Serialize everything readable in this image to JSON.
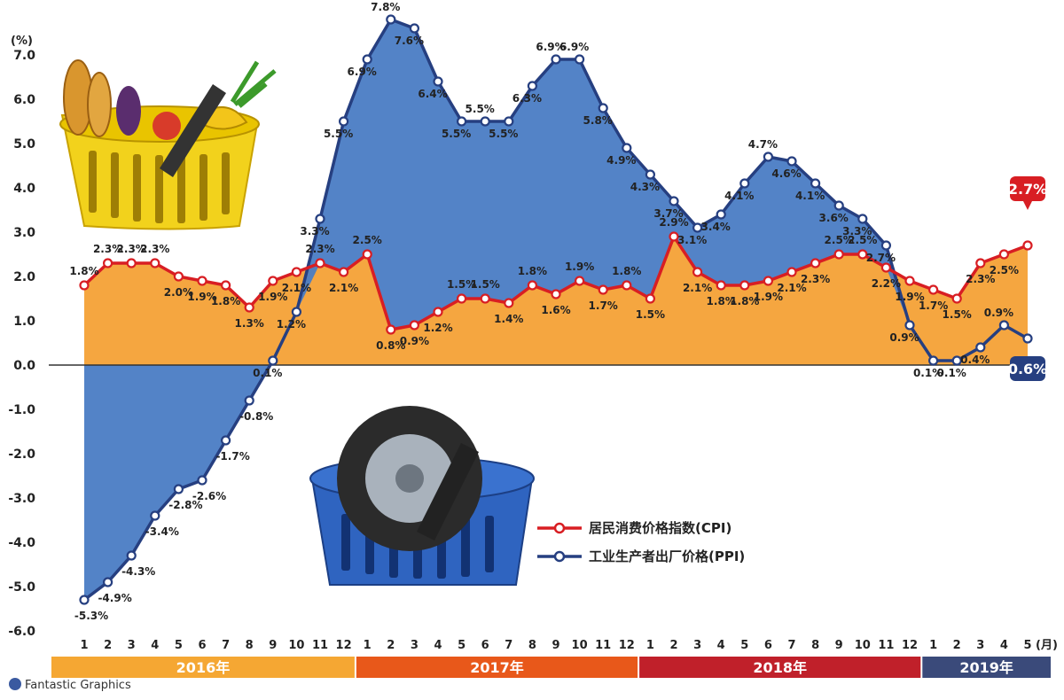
{
  "chart_data": {
    "type": "area",
    "ylabel": "(%)",
    "month_unit": "(月)",
    "ylim": [
      -6.0,
      7.0
    ],
    "yticks": [
      "7.0",
      "6.0",
      "5.0",
      "4.0",
      "3.0",
      "2.0",
      "1.0",
      "0.0",
      "-1.0",
      "-2.0",
      "-3.0",
      "-4.0",
      "-5.0",
      "-6.0"
    ],
    "months": [
      "1",
      "2",
      "3",
      "4",
      "5",
      "6",
      "7",
      "8",
      "9",
      "10",
      "11",
      "12",
      "1",
      "2",
      "3",
      "4",
      "5",
      "6",
      "7",
      "8",
      "9",
      "10",
      "11",
      "12",
      "1",
      "2",
      "3",
      "4",
      "5",
      "6",
      "7",
      "8",
      "9",
      "10",
      "11",
      "12",
      "1",
      "2",
      "3",
      "4",
      "5"
    ],
    "years": [
      {
        "label": "2016年",
        "count": 12,
        "color": "#f5a733"
      },
      {
        "label": "2017年",
        "count": 12,
        "color": "#e8581a"
      },
      {
        "label": "2018年",
        "count": 12,
        "color": "#c0202a"
      },
      {
        "label": "2019年",
        "count": 5,
        "color": "#3a4a7a"
      }
    ],
    "series": [
      {
        "name": "居民消费价格指数(CPI)",
        "color": "#d81e23",
        "fill": "#f5a640",
        "values": [
          1.8,
          2.3,
          2.3,
          2.3,
          2.0,
          1.9,
          1.8,
          1.3,
          1.9,
          2.1,
          2.3,
          2.1,
          2.5,
          0.8,
          0.9,
          1.2,
          1.5,
          1.5,
          1.4,
          1.8,
          1.6,
          1.9,
          1.7,
          1.8,
          1.5,
          2.9,
          2.1,
          1.8,
          1.8,
          1.9,
          2.1,
          2.3,
          2.5,
          2.5,
          2.2,
          1.9,
          1.7,
          1.5,
          2.3,
          2.5,
          2.7
        ],
        "labels": [
          "1.8%",
          "2.3%",
          "2.3%",
          "2.3%",
          "2.0%",
          "1.9%",
          "1.8%",
          "1.3%",
          "1.9%",
          "2.1%",
          "2.3%",
          "2.1%",
          "2.5%",
          "0.8%",
          "0.9%",
          "1.2%",
          "1.5%",
          "1.5%",
          "1.4%",
          "1.8%",
          "1.6%",
          "1.9%",
          "1.7%",
          "1.8%",
          "1.5%",
          "2.9%",
          "2.1%",
          "1.8%",
          "1.8%",
          "1.9%",
          "2.1%",
          "2.3%",
          "2.5%",
          "2.5%",
          "2.2%",
          "1.9%",
          "1.7%",
          "1.5%",
          "2.3%",
          "2.5%",
          "2.7%"
        ]
      },
      {
        "name": "工业生产者出厂价格(PPI)",
        "color": "#263f80",
        "fill": "#4a7cc4",
        "values": [
          -5.3,
          -4.9,
          -4.3,
          -3.4,
          -2.8,
          -2.6,
          -1.7,
          -0.8,
          0.1,
          1.2,
          3.3,
          5.5,
          6.9,
          7.8,
          7.6,
          6.4,
          5.5,
          5.5,
          5.5,
          6.3,
          6.9,
          6.9,
          5.8,
          4.9,
          4.3,
          3.7,
          3.1,
          3.4,
          4.1,
          4.7,
          4.6,
          4.1,
          3.6,
          3.3,
          2.7,
          0.9,
          0.1,
          0.1,
          0.4,
          0.9,
          0.6
        ],
        "labels": [
          "-5.3%",
          "-4.9%",
          "-4.3%",
          "-3.4%",
          "-2.8%",
          "-2.6%",
          "-1.7%",
          "-0.8%",
          "0.1%",
          "1.2%",
          "3.3%",
          "5.5%",
          "6.9%",
          "7.8%",
          "7.6%",
          "6.4%",
          "5.5%",
          "5.5%",
          "5.5%",
          "6.3%",
          "6.9%",
          "6.9%",
          "5.8%",
          "4.9%",
          "4.3%",
          "3.7%",
          "3.1%",
          "3.4%",
          "4.1%",
          "4.7%",
          "4.6%",
          "4.1%",
          "3.6%",
          "3.3%",
          "2.7%",
          "0.9%",
          "0.1%",
          "0.1%",
          "0.4%",
          "0.9%",
          "0.6%"
        ]
      }
    ],
    "callouts": {
      "cpi_last": "2.7%",
      "ppi_last": "0.6%"
    },
    "credit": "Fantastic Graphics"
  }
}
